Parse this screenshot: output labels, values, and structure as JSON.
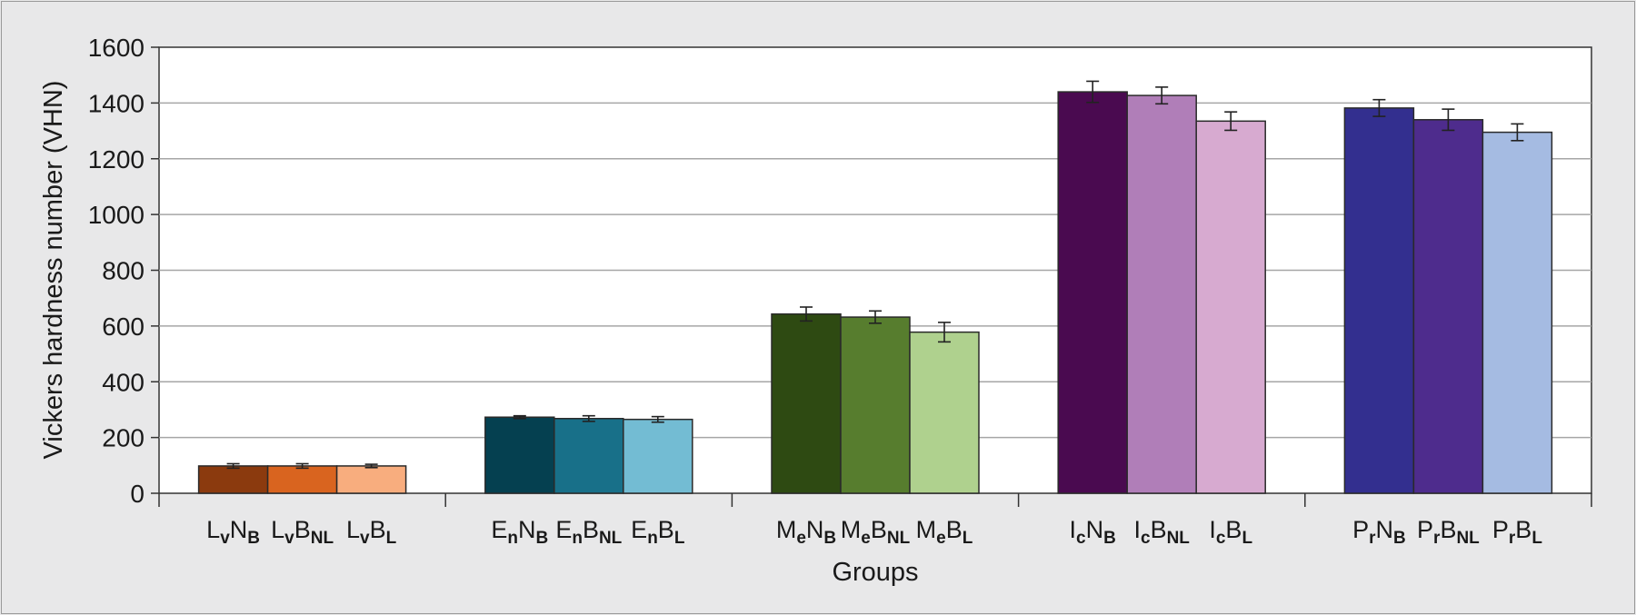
{
  "chart_data": {
    "type": "bar",
    "xlabel": "Groups",
    "ylabel": "Vickers hardness number (VHN)",
    "ylim": [
      0,
      1600
    ],
    "yticks": [
      0,
      200,
      400,
      600,
      800,
      1000,
      1200,
      1400,
      1600
    ],
    "grid": "horizontal",
    "legend": "none",
    "groups": [
      {
        "bars": [
          {
            "label": {
              "base": "L",
              "s1": "v",
              "mid": "N",
              "s2": "B"
            },
            "value": 98,
            "error": 8,
            "color": "#8b3a0e"
          },
          {
            "label": {
              "base": "L",
              "s1": "v",
              "mid": "B",
              "s2": "NL"
            },
            "value": 98,
            "error": 8,
            "color": "#d9641f"
          },
          {
            "label": {
              "base": "L",
              "s1": "v",
              "mid": "B",
              "s2": "L"
            },
            "value": 98,
            "error": 6,
            "color": "#f8ad7e"
          }
        ]
      },
      {
        "bars": [
          {
            "label": {
              "base": "E",
              "s1": "n",
              "mid": "N",
              "s2": "B"
            },
            "value": 273,
            "error": 5,
            "color": "#054050"
          },
          {
            "label": {
              "base": "E",
              "s1": "n",
              "mid": "B",
              "s2": "NL"
            },
            "value": 268,
            "error": 10,
            "color": "#187089"
          },
          {
            "label": {
              "base": "E",
              "s1": "n",
              "mid": "B",
              "s2": "L"
            },
            "value": 265,
            "error": 10,
            "color": "#73bcd3"
          }
        ]
      },
      {
        "bars": [
          {
            "label": {
              "base": "M",
              "s1": "e",
              "mid": "N",
              "s2": "B"
            },
            "value": 643,
            "error": 25,
            "color": "#2e4a12"
          },
          {
            "label": {
              "base": "M",
              "s1": "e",
              "mid": "B",
              "s2": "NL"
            },
            "value": 632,
            "error": 22,
            "color": "#577d2e"
          },
          {
            "label": {
              "base": "M",
              "s1": "e",
              "mid": "B",
              "s2": "L"
            },
            "value": 578,
            "error": 35,
            "color": "#afd18e"
          }
        ]
      },
      {
        "bars": [
          {
            "label": {
              "base": "I",
              "s1": "c",
              "mid": "N",
              "s2": "B"
            },
            "value": 1440,
            "error": 38,
            "color": "#4a0a50"
          },
          {
            "label": {
              "base": "I",
              "s1": "c",
              "mid": "B",
              "s2": "NL"
            },
            "value": 1427,
            "error": 30,
            "color": "#b07eb8"
          },
          {
            "label": {
              "base": "I",
              "s1": "c",
              "mid": "B",
              "s2": "L"
            },
            "value": 1335,
            "error": 33,
            "color": "#d7aad0"
          }
        ]
      },
      {
        "bars": [
          {
            "label": {
              "base": "P",
              "s1": "r",
              "mid": "N",
              "s2": "B"
            },
            "value": 1382,
            "error": 30,
            "color": "#332f8f"
          },
          {
            "label": {
              "base": "P",
              "s1": "r",
              "mid": "B",
              "s2": "NL"
            },
            "value": 1340,
            "error": 38,
            "color": "#4e2c8d"
          },
          {
            "label": {
              "base": "P",
              "s1": "r",
              "mid": "B",
              "s2": "L"
            },
            "value": 1295,
            "error": 30,
            "color": "#a5bbe2"
          }
        ]
      }
    ]
  }
}
